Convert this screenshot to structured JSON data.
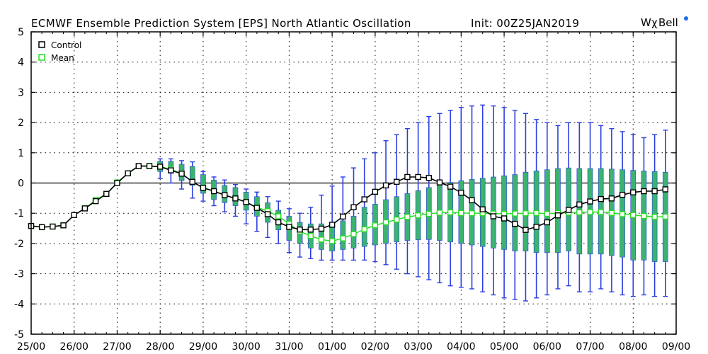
{
  "chart_data": {
    "type": "line",
    "title": "ECMWF Ensemble Prediction System [EPS] North Atlantic Oscillation",
    "init_label": "Init: 00Z25JAN2019",
    "brand": {
      "prefix": "W",
      "chi": "χ",
      "suffix": "Bell",
      "dot_color": "#1e6ff0"
    },
    "x_tick_labels": [
      "25/00",
      "26/00",
      "27/00",
      "28/00",
      "29/00",
      "30/00",
      "31/00",
      "01/00",
      "02/00",
      "03/00",
      "04/00",
      "05/00",
      "06/00",
      "07/00",
      "08/00",
      "09/00"
    ],
    "xlim_days": [
      0,
      15
    ],
    "ylim": [
      -5,
      5
    ],
    "y_ticks": [
      -5,
      -4,
      -3,
      -2,
      -1,
      0,
      1,
      2,
      3,
      4,
      5
    ],
    "grid": true,
    "legend": {
      "placement": "top-left",
      "entries": [
        "Control",
        "Mean"
      ]
    },
    "colors": {
      "control": "#000000",
      "mean": "#22dd22",
      "spread_box": "#3cb371",
      "whisker": "#2b3fe0"
    },
    "series": [
      {
        "name": "Control",
        "step_days": 0.25,
        "values": [
          -1.42,
          -1.46,
          -1.44,
          -1.4,
          -1.06,
          -0.84,
          -0.6,
          -0.36,
          0.0,
          0.32,
          0.56,
          0.56,
          0.54,
          0.42,
          0.31,
          0.04,
          -0.16,
          -0.27,
          -0.4,
          -0.51,
          -0.63,
          -0.82,
          -1.03,
          -1.3,
          -1.45,
          -1.54,
          -1.54,
          -1.51,
          -1.38,
          -1.11,
          -0.8,
          -0.54,
          -0.29,
          -0.08,
          0.04,
          0.2,
          0.2,
          0.17,
          0.02,
          -0.12,
          -0.32,
          -0.57,
          -0.87,
          -1.1,
          -1.17,
          -1.35,
          -1.55,
          -1.45,
          -1.3,
          -1.07,
          -0.89,
          -0.71,
          -0.61,
          -0.53,
          -0.51,
          -0.39,
          -0.31,
          -0.27,
          -0.27,
          -0.21
        ]
      },
      {
        "name": "Mean",
        "step_days": 0.25,
        "values": [
          -1.42,
          -1.46,
          -1.44,
          -1.4,
          -1.06,
          -0.84,
          -0.56,
          -0.36,
          0.02,
          0.32,
          0.56,
          0.56,
          0.54,
          0.46,
          0.31,
          0.04,
          -0.16,
          -0.27,
          -0.4,
          -0.51,
          -0.63,
          -0.8,
          -0.93,
          -1.1,
          -1.35,
          -1.6,
          -1.75,
          -1.87,
          -1.92,
          -1.83,
          -1.69,
          -1.53,
          -1.4,
          -1.3,
          -1.21,
          -1.12,
          -1.07,
          -1.02,
          -0.98,
          -0.97,
          -0.99,
          -1.0,
          -1.0,
          -1.01,
          -1.02,
          -1.01,
          -1.0,
          -0.99,
          -1.02,
          -0.99,
          -0.98,
          -0.97,
          -0.96,
          -0.96,
          -0.99,
          -1.03,
          -1.06,
          -1.09,
          -1.12,
          -1.11
        ]
      }
    ],
    "spread": {
      "step_days": 0.25,
      "start_index": 12,
      "box_low": [
        0.38,
        0.32,
        0.08,
        -0.08,
        -0.34,
        -0.55,
        -0.65,
        -0.75,
        -0.9,
        -1.1,
        -1.3,
        -1.55,
        -1.9,
        -2.0,
        -2.15,
        -2.2,
        -2.25,
        -2.2,
        -2.15,
        -2.1,
        -2.05,
        -2.0,
        -1.95,
        -1.9,
        -1.88,
        -1.87,
        -1.9,
        -1.95,
        -2.0,
        -2.05,
        -2.1,
        -2.15,
        -2.2,
        -2.25,
        -2.25,
        -2.3,
        -2.3,
        -2.3,
        -2.25,
        -2.35,
        -2.35,
        -2.35,
        -2.4,
        -2.45,
        -2.55,
        -2.55,
        -2.6,
        -2.6
      ],
      "box_high": [
        0.72,
        0.72,
        0.62,
        0.55,
        0.28,
        0.1,
        -0.08,
        -0.15,
        -0.3,
        -0.45,
        -0.65,
        -0.9,
        -1.1,
        -1.3,
        -1.35,
        -1.35,
        -1.3,
        -1.25,
        -1.1,
        -0.8,
        -0.7,
        -0.55,
        -0.45,
        -0.35,
        -0.25,
        -0.15,
        -0.05,
        0.02,
        0.08,
        0.12,
        0.16,
        0.2,
        0.24,
        0.28,
        0.36,
        0.4,
        0.44,
        0.48,
        0.5,
        0.48,
        0.48,
        0.48,
        0.46,
        0.44,
        0.42,
        0.4,
        0.38,
        0.36
      ],
      "whisker_low": [
        0.15,
        0.0,
        -0.2,
        -0.5,
        -0.6,
        -0.75,
        -0.95,
        -1.1,
        -1.35,
        -1.6,
        -1.8,
        -2.0,
        -2.3,
        -2.45,
        -2.5,
        -2.55,
        -2.55,
        -2.55,
        -2.55,
        -2.55,
        -2.6,
        -2.7,
        -2.85,
        -3.0,
        -3.1,
        -3.2,
        -3.3,
        -3.4,
        -3.45,
        -3.5,
        -3.6,
        -3.7,
        -3.8,
        -3.85,
        -3.9,
        -3.8,
        -3.7,
        -3.5,
        -3.4,
        -3.6,
        -3.6,
        -3.5,
        -3.6,
        -3.7,
        -3.75,
        -3.7,
        -3.75,
        -3.75
      ],
      "whisker_high": [
        0.8,
        0.8,
        0.74,
        0.7,
        0.38,
        0.2,
        0.1,
        -0.05,
        -0.2,
        -0.3,
        -0.45,
        -0.6,
        -0.85,
        -1.0,
        -0.8,
        -0.4,
        -0.1,
        0.2,
        0.5,
        0.8,
        1.0,
        1.4,
        1.6,
        1.8,
        2.0,
        2.2,
        2.3,
        2.4,
        2.5,
        2.55,
        2.58,
        2.55,
        2.5,
        2.4,
        2.3,
        2.1,
        2.0,
        1.9,
        2.0,
        2.0,
        2.0,
        1.9,
        1.8,
        1.7,
        1.6,
        1.5,
        1.6,
        1.75
      ]
    }
  }
}
